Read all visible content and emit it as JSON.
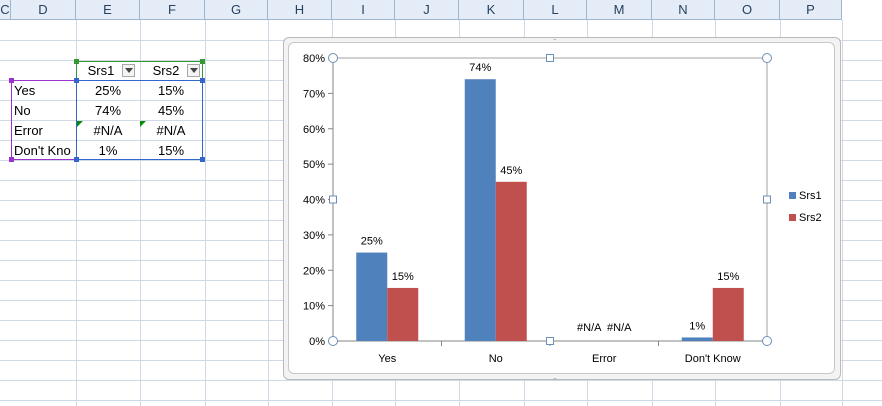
{
  "sheet": {
    "columns": [
      "C",
      "D",
      "E",
      "F",
      "G",
      "H",
      "I",
      "J",
      "K",
      "L",
      "M",
      "N",
      "O",
      "P"
    ],
    "header_row": [
      "Srs1",
      "Srs2"
    ],
    "rows": [
      {
        "label": "Yes",
        "srs1": "25%",
        "srs2": "15%"
      },
      {
        "label": "No",
        "srs1": "74%",
        "srs2": "45%"
      },
      {
        "label": "Error",
        "srs1": "#N/A",
        "srs2": "#N/A"
      },
      {
        "label": "Don't Kno",
        "srs1": "1%",
        "srs2": "15%"
      }
    ]
  },
  "chart_data": {
    "type": "bar",
    "categories": [
      "Yes",
      "No",
      "Error",
      "Don't Know"
    ],
    "series": [
      {
        "name": "Srs1",
        "values": [
          0.25,
          0.74,
          null,
          0.01
        ],
        "labels": [
          "25%",
          "74%",
          "#N/A",
          "1%"
        ],
        "color": "#4f81bd"
      },
      {
        "name": "Srs2",
        "values": [
          0.15,
          0.45,
          null,
          0.15
        ],
        "labels": [
          "15%",
          "45%",
          "#N/A",
          "15%"
        ],
        "color": "#c0504d"
      }
    ],
    "yticks": [
      "0%",
      "10%",
      "20%",
      "30%",
      "40%",
      "50%",
      "60%",
      "70%",
      "80%"
    ],
    "ylim": [
      0,
      0.8
    ],
    "legend_position": "right",
    "grid": false
  },
  "colors": {
    "header_bg": "#e4ecf7",
    "grid": "#d0d7e5",
    "table_border": "#3366cc",
    "label_range": "#9933cc",
    "header_range": "#339933"
  }
}
